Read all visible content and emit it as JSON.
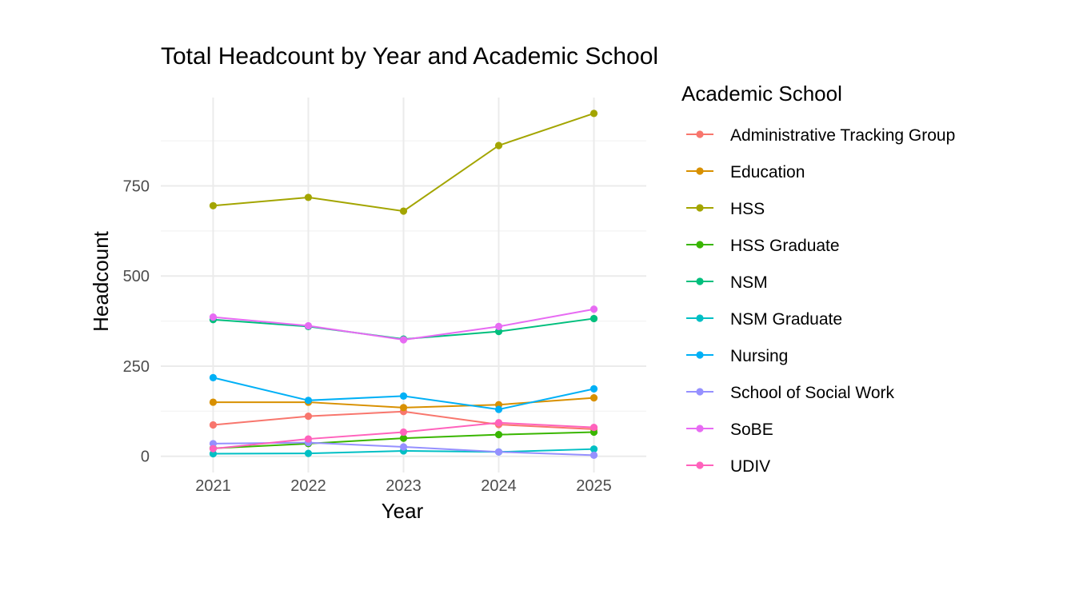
{
  "chart_data": {
    "type": "line",
    "title": "Total Headcount by Year and Academic School",
    "xlabel": "Year",
    "ylabel": "Headcount",
    "legend_title": "Academic School",
    "legend_position": "right",
    "grid": true,
    "x": [
      2021,
      2022,
      2023,
      2024,
      2025
    ],
    "x_tick_labels": [
      "2021",
      "2022",
      "2023",
      "2024",
      "2025"
    ],
    "y_ticks": [
      0,
      250,
      500,
      750
    ],
    "y_tick_labels": [
      "0",
      "250",
      "500",
      "750"
    ],
    "xlim": [
      2020.45,
      2025.55
    ],
    "ylim": [
      -45,
      995
    ],
    "series": [
      {
        "name": "Administrative Tracking Group",
        "color": "#F8766D",
        "values": [
          87,
          111,
          124,
          88,
          75
        ]
      },
      {
        "name": "Education",
        "color": "#D89000",
        "values": [
          150,
          150,
          135,
          143,
          162
        ]
      },
      {
        "name": "HSS",
        "color": "#A3A500",
        "values": [
          695,
          718,
          680,
          862,
          951
        ]
      },
      {
        "name": "HSS Graduate",
        "color": "#39B600",
        "values": [
          22,
          35,
          50,
          60,
          67
        ]
      },
      {
        "name": "NSM",
        "color": "#00BF7D",
        "values": [
          379,
          360,
          325,
          346,
          382
        ]
      },
      {
        "name": "NSM Graduate",
        "color": "#00BFC4",
        "values": [
          7,
          8,
          15,
          12,
          20
        ]
      },
      {
        "name": "Nursing",
        "color": "#00B0F6",
        "values": [
          218,
          155,
          167,
          130,
          187
        ]
      },
      {
        "name": "School of Social Work",
        "color": "#9590FF",
        "values": [
          35,
          38,
          26,
          12,
          3
        ]
      },
      {
        "name": "SoBE",
        "color": "#E76BF3",
        "values": [
          386,
          362,
          323,
          360,
          408
        ]
      },
      {
        "name": "UDIV",
        "color": "#FF62BC",
        "values": [
          21,
          48,
          67,
          93,
          80
        ]
      }
    ]
  }
}
